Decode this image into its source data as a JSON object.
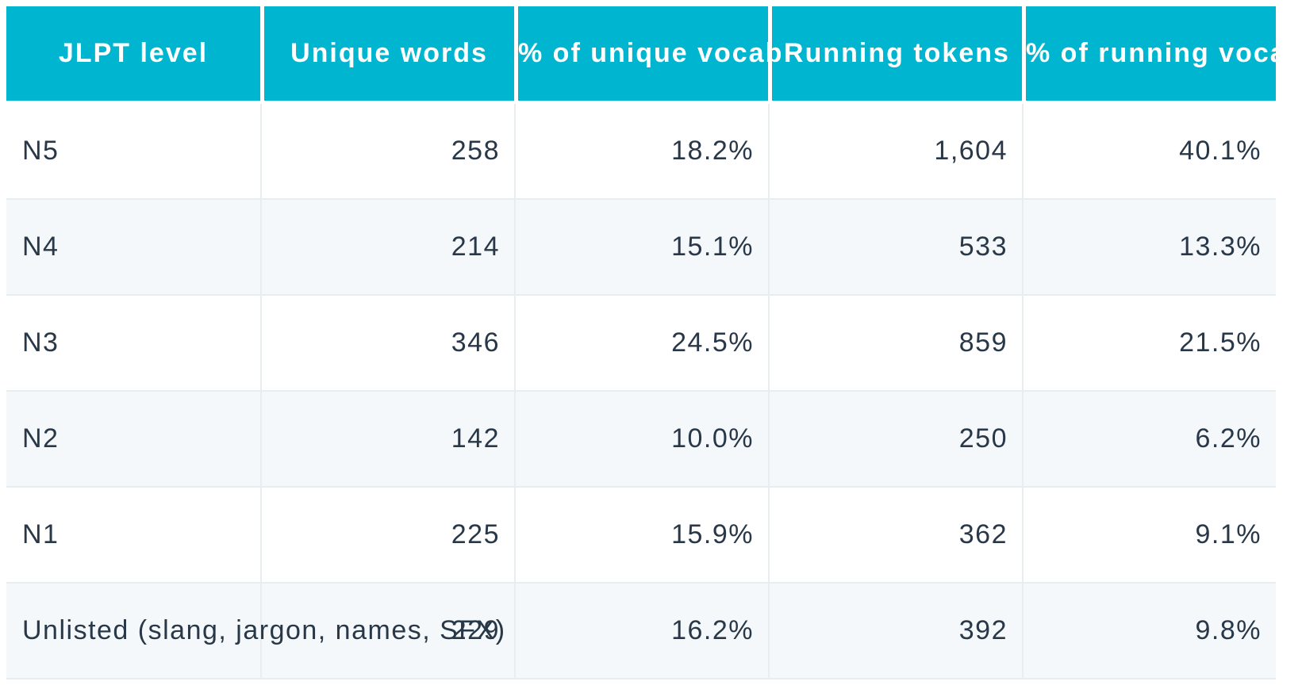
{
  "table": {
    "columns": [
      {
        "label": "JLPT level"
      },
      {
        "label": "Unique words"
      },
      {
        "label": "% of unique vocab"
      },
      {
        "label": "Running tokens"
      },
      {
        "label": "% of running vocab"
      }
    ],
    "rows": [
      {
        "cells": [
          "N5",
          "258",
          "18.2%",
          "1,604",
          "40.1%"
        ]
      },
      {
        "cells": [
          "N4",
          "214",
          "15.1%",
          "533",
          "13.3%"
        ]
      },
      {
        "cells": [
          "N3",
          "346",
          "24.5%",
          "859",
          "21.5%"
        ]
      },
      {
        "cells": [
          "N2",
          "142",
          "10.0%",
          "250",
          "6.2%"
        ]
      },
      {
        "cells": [
          "N1",
          "225",
          "15.9%",
          "362",
          "9.1%"
        ]
      },
      {
        "cells": [
          "Unlisted (slang, jargon, names, SFX)",
          "229",
          "16.2%",
          "392",
          "9.8%"
        ]
      }
    ]
  },
  "colors": {
    "header_background": "#00b5cf",
    "header_text": "#ffffff",
    "body_text": "#293848",
    "alternate_row_background": "#f4f8fa",
    "grid_border": "#e8edf0",
    "page_background": "#ffffff"
  }
}
